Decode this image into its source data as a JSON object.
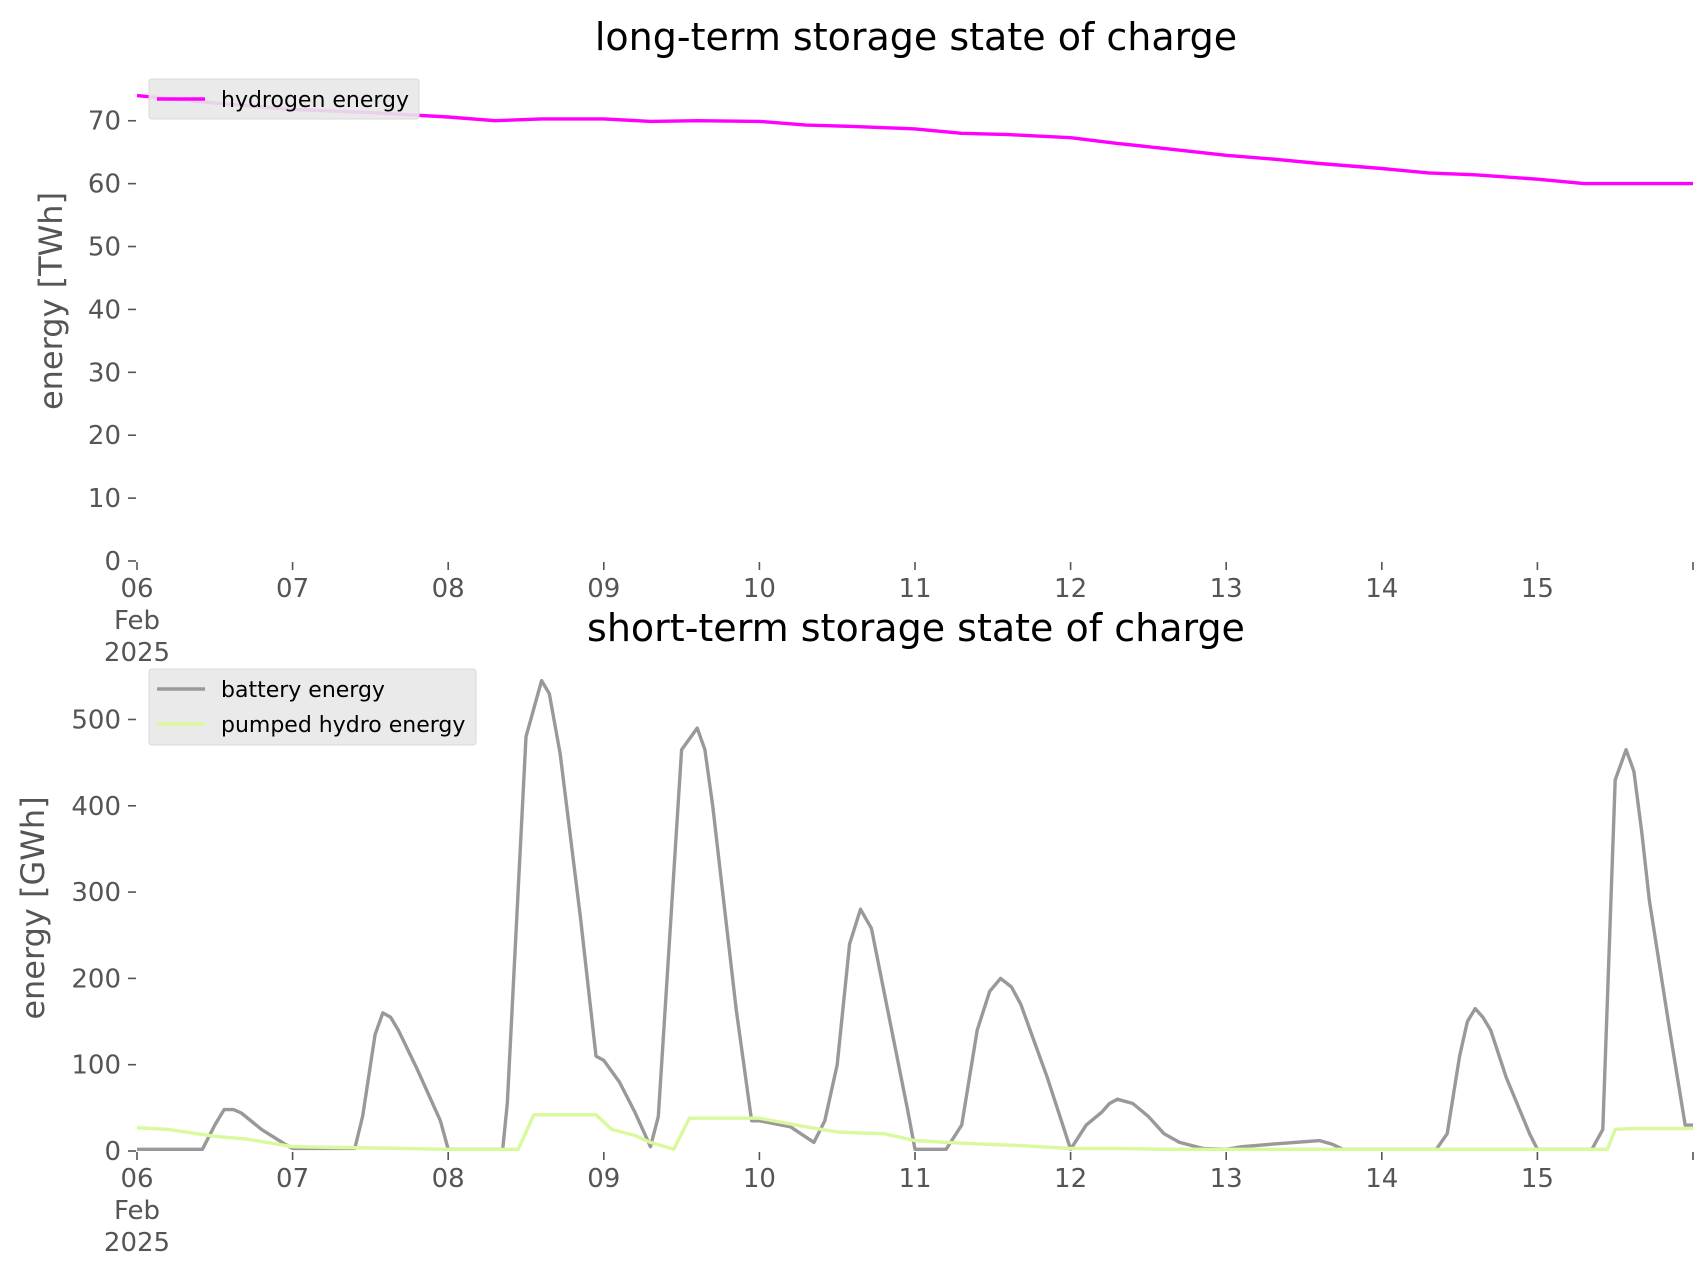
{
  "colors": {
    "hydrogen": "#ff00ff",
    "battery": "#999999",
    "pumped_hydro": "#d9f99d",
    "tick": "#555555",
    "legend_bg": "#e8e8e8"
  },
  "chart_data": [
    {
      "type": "line",
      "title": "long-term storage state of charge",
      "xlabel": "",
      "ylabel": "energy [TWh]",
      "xlim": [
        "2025-02-06",
        "2025-02-16"
      ],
      "ylim": [
        0,
        76
      ],
      "yticks": [
        0,
        10,
        20,
        30,
        40,
        50,
        60,
        70
      ],
      "xtick_labels": [
        {
          "lines": [
            "06",
            "Feb",
            "2025"
          ]
        },
        {
          "lines": [
            "07"
          ]
        },
        {
          "lines": [
            "08"
          ]
        },
        {
          "lines": [
            "09"
          ]
        },
        {
          "lines": [
            "10"
          ]
        },
        {
          "lines": [
            "11"
          ]
        },
        {
          "lines": [
            "12"
          ]
        },
        {
          "lines": [
            "13"
          ]
        },
        {
          "lines": [
            "14"
          ]
        },
        {
          "lines": [
            "15"
          ]
        },
        {
          "lines": [
            ""
          ]
        }
      ],
      "grid": false,
      "legend_position": "upper-left",
      "x_unit": "days since 2025-02-06 00:00",
      "series": [
        {
          "name": "hydrogen energy",
          "color": "#ff00ff",
          "x": [
            0,
            0.5,
            1.0,
            1.5,
            2.0,
            2.3,
            2.6,
            3.0,
            3.3,
            3.6,
            4.0,
            4.3,
            4.6,
            5.0,
            5.3,
            5.6,
            6.0,
            6.3,
            6.6,
            7.0,
            7.3,
            7.6,
            8.0,
            8.3,
            8.6,
            9.0,
            9.3,
            9.6,
            10.0
          ],
          "y": [
            74.0,
            72.8,
            71.8,
            71.3,
            70.6,
            70.0,
            70.3,
            70.3,
            69.9,
            70.0,
            69.9,
            69.3,
            69.1,
            68.7,
            68.0,
            67.8,
            67.3,
            66.4,
            65.6,
            64.5,
            63.9,
            63.2,
            62.4,
            61.7,
            61.4,
            60.7,
            60.0,
            60.0,
            60.0
          ]
        }
      ]
    },
    {
      "type": "line",
      "title": "short-term storage state of charge",
      "xlabel": "",
      "ylabel": "energy [GWh]",
      "xlim": [
        "2025-02-06",
        "2025-02-16"
      ],
      "ylim": [
        0,
        555
      ],
      "yticks": [
        0,
        100,
        200,
        300,
        400,
        500
      ],
      "xtick_labels": [
        {
          "lines": [
            "06",
            "Feb",
            "2025"
          ]
        },
        {
          "lines": [
            "07"
          ]
        },
        {
          "lines": [
            "08"
          ]
        },
        {
          "lines": [
            "09"
          ]
        },
        {
          "lines": [
            "10"
          ]
        },
        {
          "lines": [
            "11"
          ]
        },
        {
          "lines": [
            "12"
          ]
        },
        {
          "lines": [
            "13"
          ]
        },
        {
          "lines": [
            "14"
          ]
        },
        {
          "lines": [
            "15"
          ]
        },
        {
          "lines": [
            ""
          ]
        }
      ],
      "grid": false,
      "legend_position": "upper-left",
      "x_unit": "days since 2025-02-06 00:00",
      "series": [
        {
          "name": "battery energy",
          "color": "#999999",
          "x": [
            0,
            0.42,
            0.5,
            0.56,
            0.62,
            0.67,
            0.8,
            0.95,
            1.0,
            1.2,
            1.4,
            1.45,
            1.53,
            1.58,
            1.63,
            1.68,
            1.8,
            1.95,
            2.0,
            2.2,
            2.35,
            2.38,
            2.5,
            2.6,
            2.65,
            2.72,
            2.85,
            2.95,
            3.0,
            3.1,
            3.2,
            3.3,
            3.35,
            3.4,
            3.5,
            3.6,
            3.65,
            3.7,
            3.85,
            3.95,
            4.0,
            4.2,
            4.35,
            4.42,
            4.5,
            4.58,
            4.65,
            4.72,
            4.85,
            4.95,
            5.0,
            5.1,
            5.2,
            5.3,
            5.4,
            5.48,
            5.55,
            5.62,
            5.68,
            5.75,
            5.85,
            5.95,
            6.0,
            6.1,
            6.2,
            6.25,
            6.3,
            6.4,
            6.5,
            6.6,
            6.7,
            6.85,
            7.0,
            7.1,
            7.3,
            7.6,
            7.68,
            7.75,
            8.0,
            8.35,
            8.42,
            8.5,
            8.55,
            8.6,
            8.65,
            8.7,
            8.8,
            8.95,
            9.0,
            9.35,
            9.42,
            9.5,
            9.57,
            9.62,
            9.67,
            9.72,
            9.85,
            9.95,
            10.0
          ],
          "y": [
            2,
            2,
            30,
            48,
            48,
            44,
            25,
            8,
            3,
            3,
            3,
            40,
            135,
            160,
            155,
            140,
            95,
            35,
            2,
            2,
            2,
            55,
            480,
            545,
            530,
            460,
            270,
            110,
            105,
            80,
            45,
            5,
            40,
            180,
            465,
            490,
            465,
            400,
            165,
            35,
            35,
            28,
            10,
            35,
            100,
            240,
            280,
            258,
            140,
            50,
            2,
            2,
            2,
            30,
            140,
            185,
            200,
            190,
            170,
            135,
            85,
            30,
            2,
            30,
            45,
            55,
            60,
            55,
            40,
            20,
            10,
            3,
            2,
            5,
            8,
            12,
            8,
            2,
            2,
            2,
            20,
            110,
            150,
            165,
            155,
            140,
            85,
            20,
            2,
            2,
            25,
            430,
            465,
            440,
            370,
            290,
            140,
            30,
            30
          ]
        },
        {
          "name": "pumped hydro energy",
          "color": "#d9f99d",
          "x": [
            0,
            0.2,
            0.5,
            0.7,
            1.0,
            1.3,
            1.7,
            2.0,
            2.3,
            2.45,
            2.55,
            2.75,
            2.95,
            3.05,
            3.2,
            3.3,
            3.45,
            3.55,
            3.8,
            4.0,
            4.3,
            4.5,
            4.65,
            4.8,
            5.0,
            5.3,
            5.7,
            6.0,
            6.3,
            6.6,
            6.8,
            7.2,
            7.8,
            8.4,
            8.8,
            9.35,
            9.45,
            9.5,
            9.6,
            10.0
          ],
          "y": [
            27,
            25,
            17,
            14,
            5,
            4,
            3,
            2,
            2,
            2,
            42,
            42,
            42,
            25,
            18,
            10,
            2,
            38,
            38,
            38,
            28,
            22,
            21,
            20,
            12,
            9,
            6,
            3,
            3,
            2,
            2,
            2,
            2,
            2,
            2,
            2,
            2,
            25,
            26,
            26
          ]
        }
      ]
    }
  ]
}
